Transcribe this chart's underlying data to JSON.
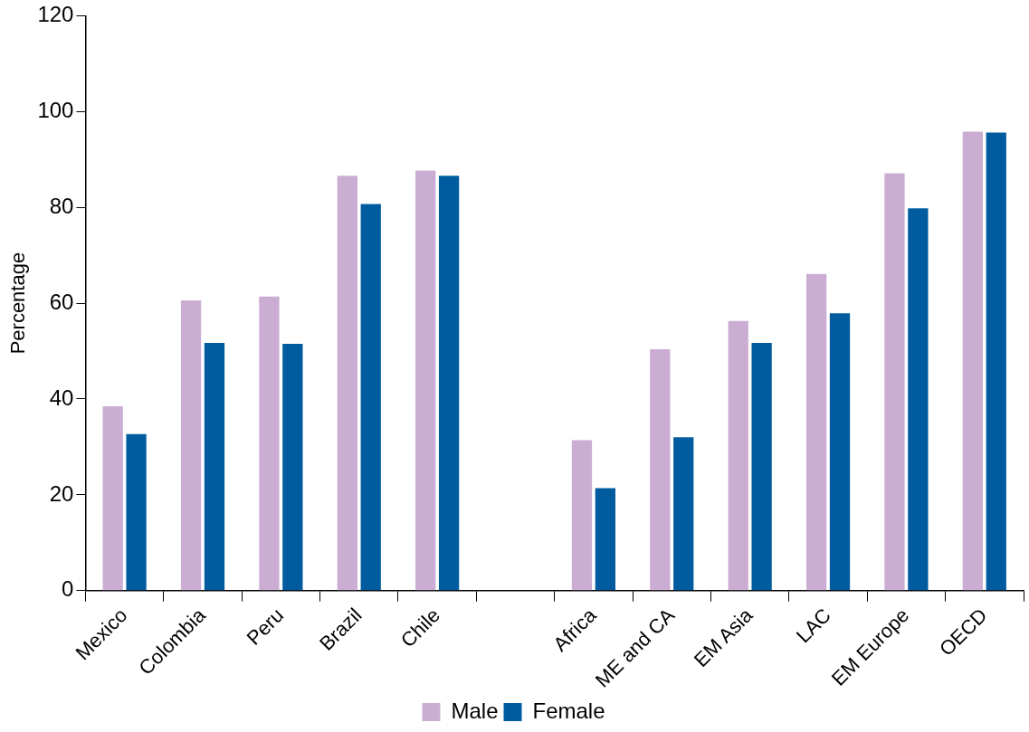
{
  "chart_data": {
    "type": "bar",
    "ylabel": "Percentage",
    "categories": [
      "Mexico",
      "Colombia",
      "Peru",
      "Brazil",
      "Chile",
      null,
      "Africa",
      "ME and CA",
      "EM Asia",
      "LAC",
      "EM Europe",
      "OECD"
    ],
    "series": [
      {
        "name": "Male",
        "color": "#cbadd3",
        "values": [
          38.5,
          60.6,
          61.4,
          86.6,
          87.7,
          null,
          31.4,
          50.4,
          56.3,
          66.1,
          87.1,
          95.8
        ]
      },
      {
        "name": "Female",
        "color": "#005c9f",
        "values": [
          32.7,
          51.7,
          51.5,
          80.7,
          86.6,
          null,
          21.4,
          32.0,
          51.7,
          57.9,
          79.8,
          95.6
        ]
      }
    ],
    "ylim": [
      0,
      120
    ],
    "yticks": [
      0,
      20,
      40,
      60,
      80,
      100,
      120
    ],
    "grid": false,
    "legend": "bottom"
  }
}
